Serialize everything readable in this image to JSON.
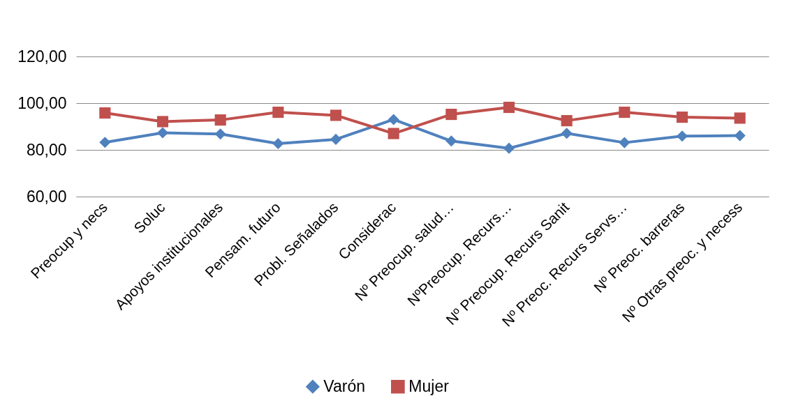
{
  "chart_data": {
    "type": "line",
    "categories": [
      "Preocup y necs",
      "Soluc",
      "Apoyos institucionales",
      "Pensam. futuro",
      "Probl. Señalados",
      "Considerac",
      "Nº Preocup. salud…",
      "NºPreocup. Recurs…",
      "Nº Preocup. Recurs Sanit",
      "Nº Preoc. Recurs Servs…",
      "Nº Preoc. barreras",
      "Nº Otras preoc. y necess"
    ],
    "series": [
      {
        "name": "Varón",
        "color": "#4f81bd",
        "marker": "diamond",
        "values": [
          83.2,
          87.3,
          86.8,
          82.7,
          84.5,
          93.0,
          83.8,
          80.7,
          87.1,
          83.1,
          85.9,
          86.1
        ]
      },
      {
        "name": "Mujer",
        "color": "#c0504d",
        "marker": "square",
        "values": [
          95.8,
          92.1,
          92.8,
          96.1,
          94.8,
          87.0,
          95.2,
          98.2,
          92.5,
          96.1,
          94.0,
          93.6
        ]
      }
    ],
    "ylim": [
      60,
      120
    ],
    "yticks": [
      {
        "value": 60,
        "label": "60,00"
      },
      {
        "value": 80,
        "label": "80,00"
      },
      {
        "value": 100,
        "label": "100,00"
      },
      {
        "value": 120,
        "label": "120,00"
      }
    ],
    "grid": "y",
    "legend": "bottom",
    "line_style": "solid"
  }
}
